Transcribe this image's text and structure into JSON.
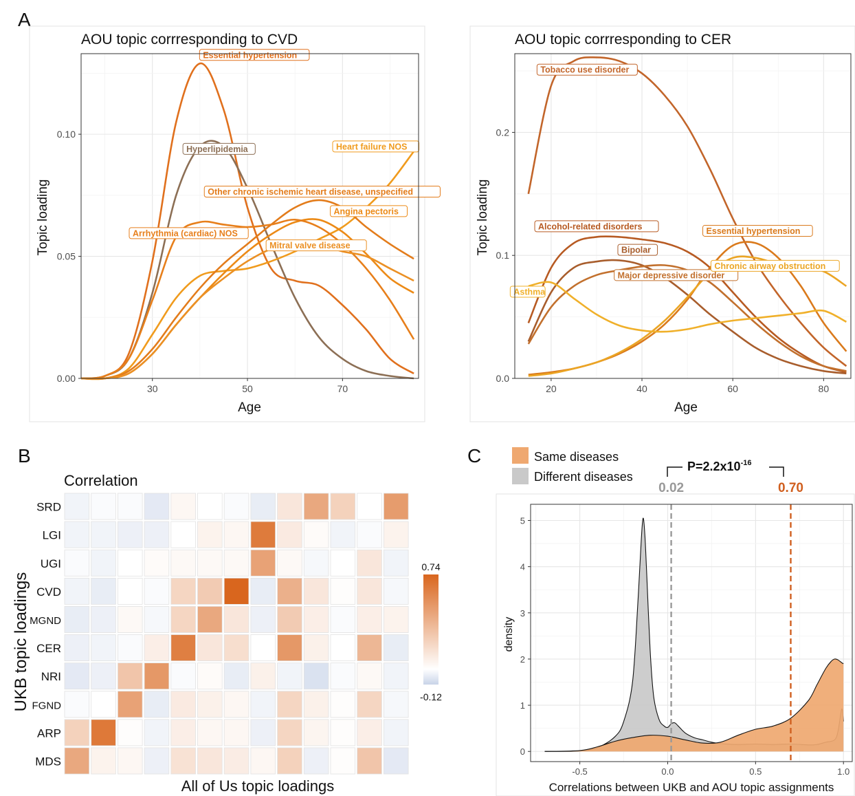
{
  "panel_letters": [
    "A",
    "B",
    "C"
  ],
  "chart_data": [
    {
      "type": "line",
      "panel": "A",
      "title": "AOU topic corrresponding to CVD",
      "xlabel": "Age",
      "ylabel": "Topic loading",
      "xlim": [
        15,
        86
      ],
      "ylim": [
        0,
        0.133
      ],
      "xticks": [
        30,
        50,
        70
      ],
      "yticks": [
        0.0,
        0.05,
        0.1
      ],
      "ytick_labels": [
        "0.00",
        "0.05",
        "0.10"
      ],
      "grid": true,
      "series": [
        {
          "name": "Essential hypertension",
          "color": "#e0701d",
          "x": [
            15,
            20,
            25,
            30,
            35,
            40,
            45,
            50,
            55,
            60,
            65,
            70,
            75,
            80,
            85
          ],
          "y": [
            0.0,
            0.001,
            0.01,
            0.048,
            0.105,
            0.129,
            0.11,
            0.07,
            0.045,
            0.04,
            0.038,
            0.03,
            0.02,
            0.008,
            0.002
          ]
        },
        {
          "name": "Hyperlipidemia",
          "color": "#8c6f55",
          "x": [
            15,
            20,
            25,
            30,
            35,
            40,
            45,
            50,
            55,
            60,
            65,
            70,
            75,
            80,
            85
          ],
          "y": [
            0.0,
            0.001,
            0.008,
            0.035,
            0.075,
            0.095,
            0.095,
            0.078,
            0.055,
            0.033,
            0.017,
            0.008,
            0.003,
            0.001,
            0.0
          ]
        },
        {
          "name": "Heart failure NOS",
          "color": "#f09b1d",
          "x": [
            15,
            20,
            25,
            30,
            35,
            40,
            45,
            50,
            55,
            60,
            65,
            70,
            75,
            80,
            85
          ],
          "y": [
            0.0,
            0.0,
            0.004,
            0.018,
            0.033,
            0.042,
            0.044,
            0.045,
            0.048,
            0.052,
            0.057,
            0.062,
            0.07,
            0.08,
            0.093
          ]
        },
        {
          "name": "Other chronic ischemic heart disease, unspecified",
          "color": "#e37c1b",
          "x": [
            15,
            20,
            25,
            30,
            35,
            40,
            45,
            50,
            55,
            60,
            65,
            70,
            75,
            80,
            85
          ],
          "y": [
            0.0,
            0.0,
            0.003,
            0.012,
            0.025,
            0.037,
            0.047,
            0.055,
            0.063,
            0.07,
            0.073,
            0.07,
            0.062,
            0.055,
            0.049
          ]
        },
        {
          "name": "Angina pectoris",
          "color": "#ec8a16",
          "x": [
            15,
            20,
            25,
            30,
            35,
            40,
            45,
            50,
            55,
            60,
            65,
            70,
            75,
            80,
            85
          ],
          "y": [
            0.0,
            0.0,
            0.002,
            0.01,
            0.022,
            0.033,
            0.043,
            0.052,
            0.059,
            0.064,
            0.065,
            0.06,
            0.051,
            0.041,
            0.035
          ]
        },
        {
          "name": "Arrhythmia (cardiac) NOS",
          "color": "#e77f1b",
          "x": [
            15,
            20,
            25,
            30,
            35,
            40,
            45,
            50,
            55,
            60,
            65,
            70,
            75,
            80,
            85
          ],
          "y": [
            0.0,
            0.001,
            0.008,
            0.032,
            0.058,
            0.064,
            0.063,
            0.062,
            0.063,
            0.065,
            0.062,
            0.055,
            0.045,
            0.032,
            0.016
          ]
        },
        {
          "name": "Mitral valve disease",
          "color": "#eb9024",
          "x": [
            15,
            20,
            25,
            30,
            35,
            40,
            45,
            50,
            55,
            60,
            65,
            70,
            75,
            80,
            85
          ],
          "y": [
            0.0,
            0.0,
            0.002,
            0.01,
            0.022,
            0.033,
            0.041,
            0.048,
            0.053,
            0.055,
            0.055,
            0.052,
            0.05,
            0.045,
            0.04
          ]
        }
      ],
      "annotations": [
        {
          "text": "Essential hypertension",
          "x": 40.5,
          "y": 0.1325,
          "color": "#e0701d",
          "anchor": "start"
        },
        {
          "text": "Hyperlipidemia",
          "x": 37,
          "y": 0.094,
          "color": "#8c6f55",
          "anchor": "start"
        },
        {
          "text": "Heart failure NOS",
          "x": 68.5,
          "y": 0.095,
          "color": "#f09b1d",
          "anchor": "start"
        },
        {
          "text": "Other chronic ischemic heart disease, unspecified",
          "x": 41.5,
          "y": 0.0765,
          "color": "#e37c1b",
          "anchor": "start"
        },
        {
          "text": "Angina pectoris",
          "x": 68,
          "y": 0.0685,
          "color": "#ec8a16",
          "anchor": "start"
        },
        {
          "text": "Arrhythmia (cardiac) NOS",
          "x": 25.7,
          "y": 0.0595,
          "color": "#e77f1b",
          "anchor": "start"
        },
        {
          "text": "Mitral valve disease",
          "x": 54.5,
          "y": 0.0545,
          "color": "#eb9024",
          "anchor": "start"
        }
      ]
    },
    {
      "type": "line",
      "panel": "A",
      "title": "AOU topic corrresponding to CER",
      "xlabel": "Age",
      "ylabel": "Topic loading",
      "xlim": [
        12,
        86
      ],
      "ylim": [
        0,
        0.264
      ],
      "xticks": [
        20,
        40,
        60,
        80
      ],
      "yticks": [
        0.0,
        0.1,
        0.2
      ],
      "ytick_labels": [
        "0.0",
        "0.1",
        "0.2"
      ],
      "grid": true,
      "series": [
        {
          "name": "Tobacco use disorder",
          "color": "#c2652a",
          "x": [
            15,
            20,
            25,
            30,
            35,
            40,
            45,
            50,
            55,
            60,
            65,
            70,
            75,
            80,
            85
          ],
          "y": [
            0.15,
            0.238,
            0.258,
            0.261,
            0.258,
            0.248,
            0.23,
            0.205,
            0.17,
            0.13,
            0.095,
            0.068,
            0.045,
            0.025,
            0.01
          ]
        },
        {
          "name": "Alcohol-related disorders",
          "color": "#b75a22",
          "x": [
            15,
            20,
            25,
            30,
            35,
            40,
            45,
            50,
            55,
            60,
            65,
            70,
            75,
            80,
            85
          ],
          "y": [
            0.045,
            0.09,
            0.11,
            0.115,
            0.115,
            0.113,
            0.11,
            0.103,
            0.09,
            0.07,
            0.05,
            0.033,
            0.02,
            0.01,
            0.005
          ]
        },
        {
          "name": "Bipolar",
          "color": "#a85d2c",
          "x": [
            15,
            20,
            25,
            30,
            35,
            40,
            45,
            50,
            55,
            60,
            65,
            70,
            75,
            80,
            85
          ],
          "y": [
            0.03,
            0.07,
            0.09,
            0.095,
            0.096,
            0.092,
            0.082,
            0.068,
            0.052,
            0.038,
            0.025,
            0.016,
            0.01,
            0.006,
            0.004
          ]
        },
        {
          "name": "Major depressive disorder",
          "color": "#c2702d",
          "x": [
            15,
            20,
            25,
            30,
            35,
            40,
            45,
            50,
            55,
            60,
            65,
            70,
            75,
            80,
            85
          ],
          "y": [
            0.028,
            0.058,
            0.075,
            0.084,
            0.088,
            0.091,
            0.092,
            0.088,
            0.078,
            0.062,
            0.045,
            0.03,
            0.018,
            0.01,
            0.006
          ]
        },
        {
          "name": "Essential hypertension",
          "color": "#da7a1c",
          "x": [
            15,
            20,
            25,
            30,
            35,
            40,
            45,
            50,
            55,
            60,
            65,
            70,
            75,
            80,
            85
          ],
          "y": [
            0.003,
            0.005,
            0.008,
            0.013,
            0.02,
            0.03,
            0.044,
            0.064,
            0.09,
            0.108,
            0.11,
            0.098,
            0.075,
            0.045,
            0.022
          ]
        },
        {
          "name": "Chronic airway obstruction",
          "color": "#eba524",
          "x": [
            15,
            20,
            25,
            30,
            35,
            40,
            45,
            50,
            55,
            60,
            65,
            70,
            75,
            80,
            85
          ],
          "y": [
            0.002,
            0.004,
            0.008,
            0.013,
            0.021,
            0.032,
            0.047,
            0.066,
            0.086,
            0.098,
            0.098,
            0.093,
            0.09,
            0.087,
            0.075
          ]
        },
        {
          "name": "Asthma",
          "color": "#f0b02a",
          "x": [
            15,
            20,
            25,
            30,
            35,
            40,
            45,
            50,
            55,
            60,
            65,
            70,
            75,
            80,
            85
          ],
          "y": [
            0.075,
            0.078,
            0.065,
            0.052,
            0.043,
            0.039,
            0.038,
            0.04,
            0.044,
            0.047,
            0.049,
            0.051,
            0.053,
            0.055,
            0.046
          ]
        }
      ],
      "annotations": [
        {
          "text": "Tobacco use disorder",
          "x": 17.5,
          "y": 0.251,
          "color": "#c2652a",
          "anchor": "start"
        },
        {
          "text": "Alcohol-related disorders",
          "x": 17,
          "y": 0.1237,
          "color": "#b75a22",
          "anchor": "start"
        },
        {
          "text": "Bipolar",
          "x": 35.3,
          "y": 0.1045,
          "color": "#a85d2c",
          "anchor": "start"
        },
        {
          "text": "Major depressive disorder",
          "x": 34.5,
          "y": 0.084,
          "color": "#c2702d",
          "anchor": "start"
        },
        {
          "text": "Essential hypertension",
          "x": 54,
          "y": 0.12,
          "color": "#da7a1c",
          "anchor": "start"
        },
        {
          "text": "Chronic airway obstruction",
          "x": 55.8,
          "y": 0.0915,
          "color": "#eba524",
          "anchor": "start"
        },
        {
          "text": "Asthma",
          "x": 11.6,
          "y": 0.0705,
          "color": "#f0b02a",
          "anchor": "start"
        }
      ]
    },
    {
      "type": "heatmap",
      "panel": "B",
      "title": "Correlation",
      "xlabel": "All of Us topic loadings",
      "ylabel": "UKB topic loadings",
      "rows": [
        "SRD",
        "LGI",
        "UGI",
        "CVD",
        "MGND",
        "CER",
        "NRI",
        "FGND",
        "ARP",
        "MDS"
      ],
      "legend_max": 0.74,
      "legend_min": -0.12,
      "legend_max_label": "0.74",
      "legend_min_label": "-0.12",
      "colors": {
        "low": "#c8d3e8",
        "mid": "#ffffff",
        "high": "#d9661e"
      },
      "values": [
        [
          -0.03,
          -0.01,
          -0.01,
          -0.06,
          0.04,
          0.0,
          -0.01,
          -0.05,
          0.12,
          0.42,
          0.22,
          0.0,
          0.48
        ],
        [
          -0.03,
          -0.03,
          -0.04,
          -0.04,
          0.0,
          0.06,
          0.04,
          0.64,
          0.1,
          0.02,
          -0.03,
          -0.01,
          0.06
        ],
        [
          -0.01,
          -0.03,
          0.0,
          0.02,
          0.03,
          0.03,
          0.03,
          0.45,
          0.03,
          -0.02,
          0.0,
          0.12,
          -0.03
        ],
        [
          -0.03,
          -0.05,
          0.0,
          -0.01,
          0.2,
          0.25,
          0.74,
          -0.05,
          0.38,
          0.12,
          0.01,
          0.12,
          -0.02
        ],
        [
          -0.05,
          -0.04,
          0.03,
          -0.02,
          0.2,
          0.42,
          0.12,
          -0.04,
          0.25,
          0.08,
          -0.01,
          0.08,
          0.06
        ],
        [
          -0.04,
          -0.03,
          -0.01,
          0.08,
          0.62,
          0.12,
          0.16,
          0.0,
          0.5,
          0.07,
          0.0,
          0.35,
          -0.05
        ],
        [
          -0.06,
          -0.04,
          0.28,
          0.5,
          -0.01,
          0.02,
          -0.05,
          0.07,
          -0.03,
          -0.08,
          -0.01,
          0.03,
          -0.03
        ],
        [
          -0.01,
          0.0,
          0.45,
          -0.05,
          0.1,
          0.07,
          0.04,
          -0.03,
          0.2,
          0.07,
          0.01,
          0.2,
          -0.02
        ],
        [
          0.22,
          0.65,
          0.01,
          -0.03,
          0.08,
          0.04,
          0.04,
          -0.04,
          0.2,
          0.05,
          0.01,
          0.08,
          -0.03
        ],
        [
          0.42,
          0.06,
          0.04,
          -0.04,
          0.14,
          0.12,
          0.09,
          0.04,
          0.22,
          -0.04,
          0.01,
          0.28,
          -0.06
        ]
      ]
    },
    {
      "type": "area",
      "panel": "C",
      "xlabel": "Correlations between UKB and AOU topic assignments",
      "ylabel": "density",
      "xlim": [
        -0.78,
        1.05
      ],
      "ylim": [
        -0.22,
        5.35
      ],
      "xticks": [
        -0.5,
        0.0,
        0.5,
        1.0
      ],
      "xtick_labels": [
        "-0.5",
        "0.0",
        "0.5",
        "1.0"
      ],
      "yticks": [
        0,
        1,
        2,
        3,
        4,
        5
      ],
      "grid": true,
      "legend": [
        {
          "name": "Same diseases",
          "color": "#efa870"
        },
        {
          "name": "Different diseases",
          "color": "#c9c9c9"
        }
      ],
      "legend_position": "top-left",
      "pvalue_label": "P=2.2x10",
      "pvalue_exponent": "-16",
      "vlines": [
        {
          "x": 0.02,
          "label": "0.02",
          "color": "#999999"
        },
        {
          "x": 0.7,
          "label": "0.70",
          "color": "#d05f1f"
        }
      ],
      "series": [
        {
          "name": "Different diseases",
          "color": "#c9c9c9",
          "x": [
            -0.7,
            -0.5,
            -0.4,
            -0.3,
            -0.25,
            -0.2,
            -0.17,
            -0.15,
            -0.14,
            -0.13,
            -0.12,
            -0.1,
            -0.08,
            -0.05,
            -0.02,
            0.0,
            0.02,
            0.04,
            0.06,
            0.1,
            0.15,
            0.2,
            0.25,
            0.3,
            0.4,
            0.5,
            0.6,
            0.7,
            0.8,
            0.85,
            0.9,
            0.95,
            0.97,
            0.99,
            1.0
          ],
          "y": [
            0.0,
            0.01,
            0.08,
            0.32,
            0.65,
            1.5,
            3.2,
            4.6,
            5.05,
            4.7,
            3.9,
            2.2,
            1.2,
            0.7,
            0.55,
            0.52,
            0.6,
            0.62,
            0.55,
            0.4,
            0.3,
            0.25,
            0.2,
            0.17,
            0.15,
            0.16,
            0.15,
            0.16,
            0.14,
            0.15,
            0.2,
            0.25,
            0.45,
            0.92,
            0.65
          ]
        },
        {
          "name": "Same diseases",
          "color": "#efa870",
          "x": [
            -0.7,
            -0.5,
            -0.4,
            -0.3,
            -0.2,
            -0.1,
            0.0,
            0.1,
            0.2,
            0.3,
            0.4,
            0.5,
            0.6,
            0.7,
            0.8,
            0.85,
            0.9,
            0.93,
            0.95,
            0.97,
            0.99,
            1.0
          ],
          "y": [
            0.0,
            0.02,
            0.1,
            0.22,
            0.3,
            0.35,
            0.33,
            0.25,
            0.18,
            0.2,
            0.35,
            0.48,
            0.55,
            0.72,
            1.1,
            1.45,
            1.8,
            1.95,
            2.0,
            1.98,
            1.92,
            1.9
          ]
        }
      ]
    }
  ]
}
